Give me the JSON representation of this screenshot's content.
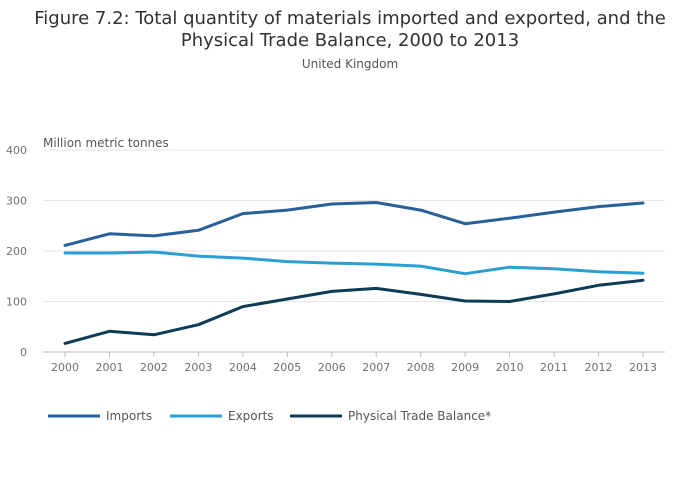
{
  "chart_data": {
    "type": "line",
    "title_line1": "Figure 7.2: Total quantity of materials imported and exported, and the",
    "title_line2": "Physical Trade Balance, 2000 to 2013",
    "subtitle": "United Kingdom",
    "ylabel": "Million metric tonnes",
    "xlabel": "",
    "ylim": [
      0,
      400
    ],
    "yticks": [
      0,
      100,
      200,
      300,
      400
    ],
    "categories": [
      "2000",
      "2001",
      "2002",
      "2003",
      "2004",
      "2005",
      "2006",
      "2007",
      "2008",
      "2009",
      "2010",
      "2011",
      "2012",
      "2013"
    ],
    "grid": true,
    "legend_position": "bottom",
    "series": [
      {
        "name": "Imports",
        "color": "#27609b",
        "values": [
          211,
          234,
          230,
          241,
          274,
          281,
          293,
          296,
          281,
          254,
          265,
          277,
          288,
          295
        ]
      },
      {
        "name": "Exports",
        "color": "#2a9fd1",
        "values": [
          196,
          196,
          198,
          190,
          186,
          179,
          176,
          174,
          170,
          155,
          168,
          165,
          159,
          156
        ]
      },
      {
        "name": "Physical Trade Balance*",
        "color": "#0f3b57",
        "values": [
          17,
          41,
          34,
          54,
          90,
          105,
          120,
          126,
          114,
          101,
          100,
          115,
          132,
          142
        ]
      }
    ]
  }
}
